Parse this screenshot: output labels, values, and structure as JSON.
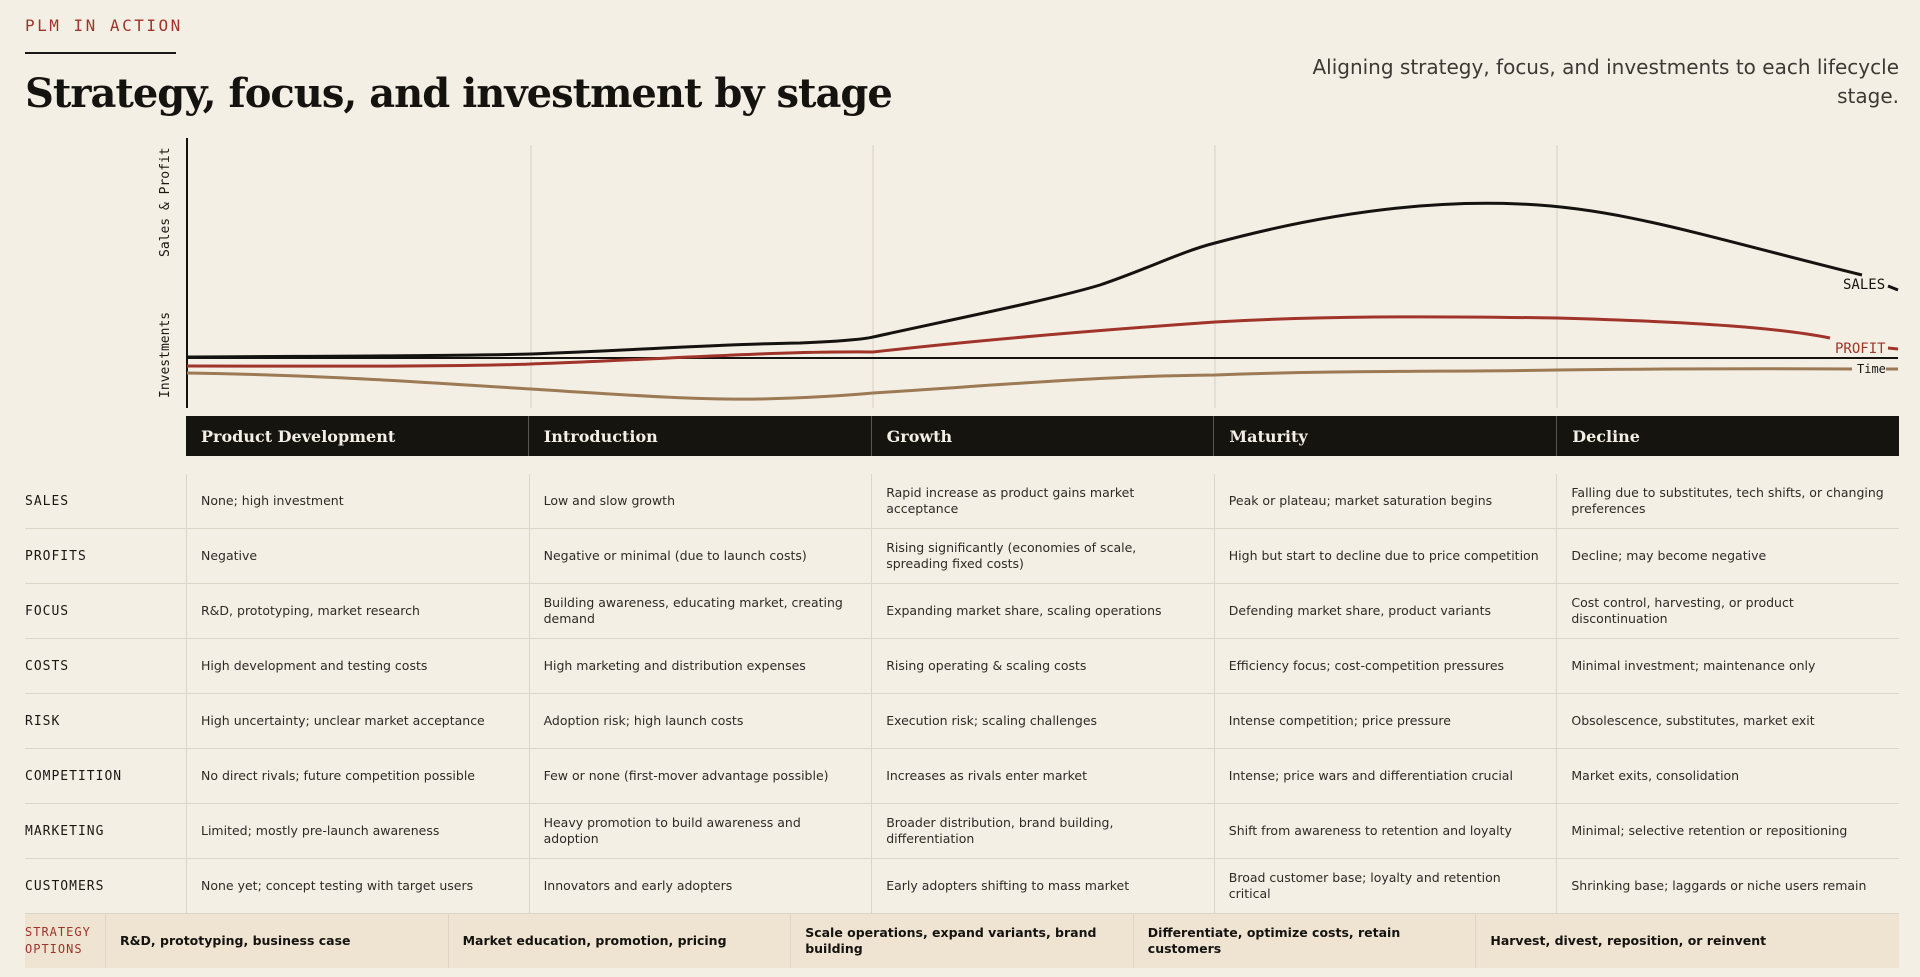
{
  "header": {
    "eyebrow": "PLM IN ACTION",
    "title": "Strategy, focus, and investment by stage",
    "subtitle": "Aligning strategy, focus, and investments to each lifecycle stage."
  },
  "diagram": {
    "y_labels": {
      "top": "Sales & Profit",
      "bottom": "Investments"
    },
    "curves": [
      {
        "label": "SALES",
        "color": "#15130f"
      },
      {
        "label": "PROFIT",
        "color": "#a0342a"
      },
      {
        "label": "Time",
        "color": "#1a1814"
      }
    ],
    "investment_curve_color": "#9c7a55"
  },
  "stages": [
    "Product Development",
    "Introduction",
    "Growth",
    "Maturity",
    "Decline"
  ],
  "rows": [
    {
      "label": "SALES",
      "cells": [
        "None; high investment",
        "Low and slow growth",
        "Rapid increase as product gains market acceptance",
        "Peak or plateau; market saturation begins",
        "Falling due to substitutes, tech shifts, or changing preferences"
      ]
    },
    {
      "label": "PROFITS",
      "cells": [
        "Negative",
        "Negative or minimal (due to launch costs)",
        "Rising significantly (economies of scale, spreading fixed costs)",
        "High but start to decline due to price competition",
        "Decline; may become negative"
      ]
    },
    {
      "label": "FOCUS",
      "cells": [
        "R&D, prototyping, market research",
        "Building awareness, educating market, creating demand",
        "Expanding market share, scaling operations",
        "Defending market share, product variants",
        "Cost control, harvesting, or product discontinuation"
      ]
    },
    {
      "label": "COSTS",
      "cells": [
        "High development and testing costs",
        "High marketing and distribution expenses",
        "Rising operating & scaling costs",
        "Efficiency focus; cost-competition pressures",
        "Minimal investment; maintenance only"
      ]
    },
    {
      "label": "RISK",
      "cells": [
        "High uncertainty; unclear market acceptance",
        "Adoption risk; high launch costs",
        "Execution risk; scaling challenges",
        "Intense competition; price pressure",
        "Obsolescence, substitutes, market exit"
      ]
    },
    {
      "label": "COMPETITION",
      "cells": [
        "No direct rivals; future competition possible",
        "Few or none (first-mover advantage possible)",
        "Increases as rivals enter market",
        "Intense; price wars and differentiation crucial",
        "Market exits, consolidation"
      ]
    },
    {
      "label": "MARKETING",
      "cells": [
        "Limited; mostly pre-launch awareness",
        "Heavy promotion to build awareness and adoption",
        "Broader distribution, brand building, differentiation",
        "Shift from awareness to retention and loyalty",
        "Minimal; selective retention or repositioning"
      ]
    },
    {
      "label": "CUSTOMERS",
      "cells": [
        "None yet; concept testing with target users",
        "Innovators and early adopters",
        "Early adopters shifting to mass market",
        "Broad customer base; loyalty and retention critical",
        "Shrinking base; laggards or niche users remain"
      ]
    },
    {
      "label": "STRATEGY OPTIONS",
      "cells": [
        "R&D, prototyping, business case",
        "Market education, promotion, pricing",
        "Scale operations, expand variants, brand building",
        "Differentiate, optimize costs, retain customers",
        "Harvest, divest, reposition, or reinvent"
      ]
    }
  ]
}
